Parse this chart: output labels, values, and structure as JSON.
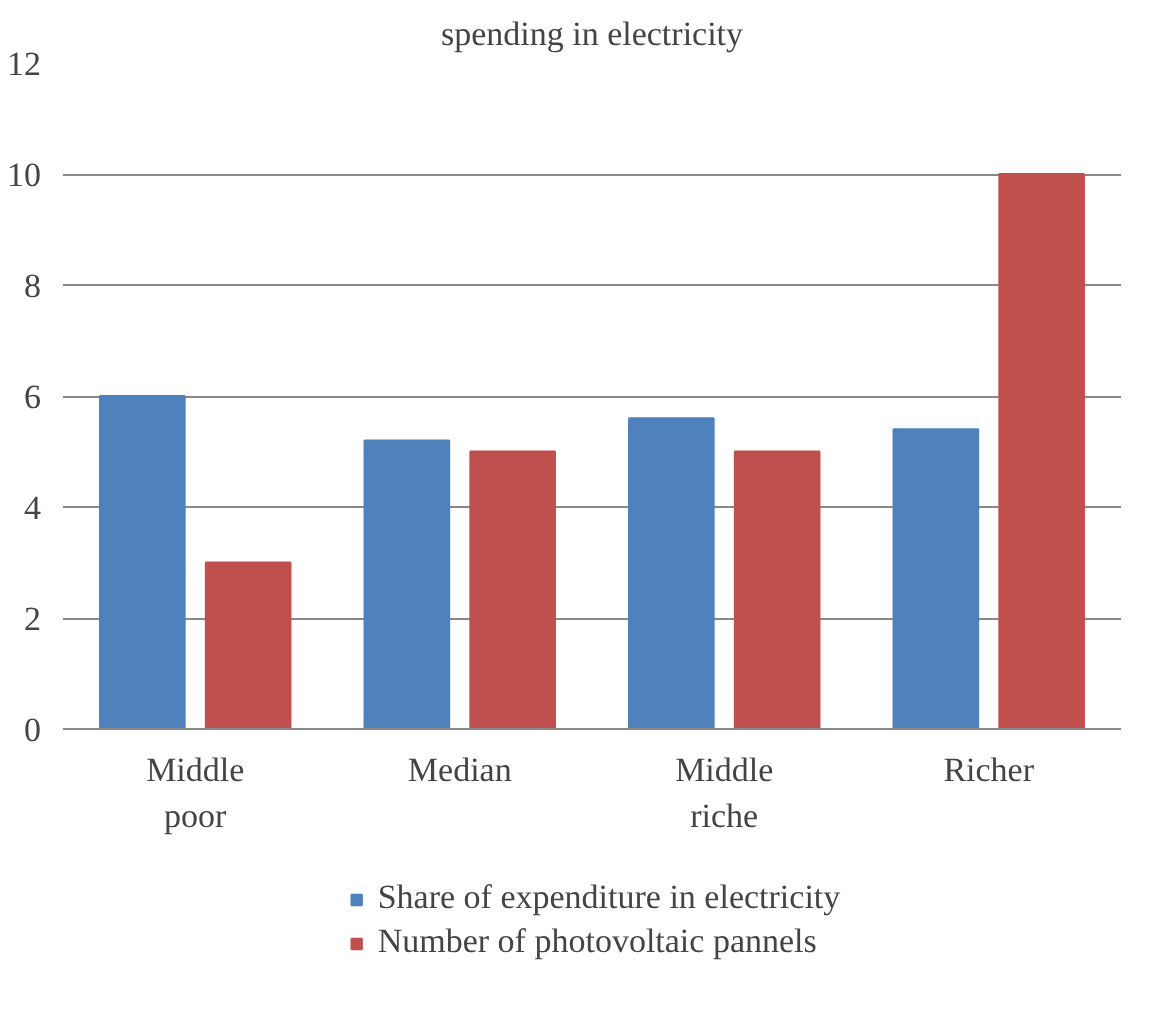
{
  "chart_data": {
    "type": "bar",
    "title": "spending in electricity",
    "categories": [
      "Middle\npoor",
      "Median",
      "Middle\nriche",
      "Richer"
    ],
    "series": [
      {
        "name": "Share of expenditure in electricity",
        "color": "#4f81bd",
        "values": [
          6,
          5.2,
          5.6,
          5.4
        ]
      },
      {
        "name": "Number of photovoltaic pannels",
        "color": "#c0504d",
        "values": [
          3,
          5,
          5,
          10
        ]
      }
    ],
    "ylim": [
      0,
      12
    ],
    "yticks": [
      0,
      2,
      4,
      6,
      8,
      10,
      12
    ],
    "grid": "y",
    "legend": "bottom"
  }
}
